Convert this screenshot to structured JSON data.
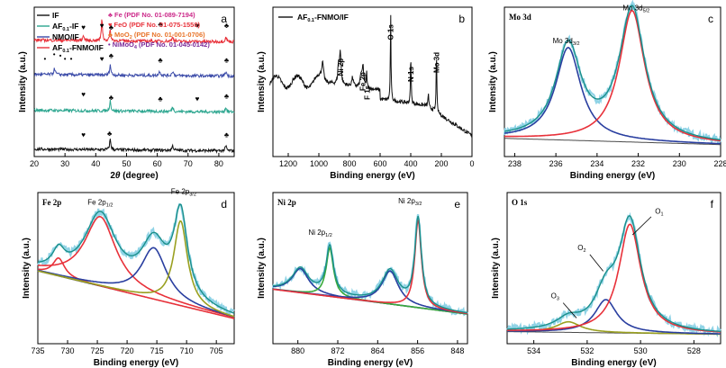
{
  "palette": {
    "raw": "#8fd3e6",
    "envelope": "#1a8f8a",
    "red": "#e8313a",
    "blue": "#2a3fa0",
    "olive": "#9aa020",
    "green": "#3aaa3a",
    "bg": "#4a4a4a",
    "magenta": "#cc2a8a",
    "purple": "#7a2a9a",
    "orange": "#e8742a",
    "teal": "#2aa58e",
    "navy": "#3a4aa8",
    "black": "#111111"
  },
  "chart_data": [
    {
      "id": "a",
      "type": "line",
      "panel_label": "a",
      "xlabel": "2θ (degree)",
      "ylabel": "Intensity (a.u.)",
      "xlim": [
        20,
        85
      ],
      "xticks": [
        20,
        30,
        40,
        50,
        60,
        70,
        80
      ],
      "series": [
        {
          "name": "IF",
          "color": "#111111",
          "offset": 0.05
        },
        {
          "name": "AF0.1-IF",
          "color": "#2aa58e",
          "offset": 0.3
        },
        {
          "name": "NMO/IF",
          "color": "#3a4aa8",
          "offset": 0.55
        },
        {
          "name": "AF0.1-FNMO/IF",
          "color": "#e8313a",
          "offset": 0.78
        }
      ],
      "reference_cards": [
        {
          "symbol": "♣",
          "phase": "Fe",
          "card": "PDF No. 01-089-7194",
          "color": "#cc2a8a"
        },
        {
          "symbol": "♥",
          "phase": "FeO",
          "card": "PDF No. 01-075-1550",
          "color": "#e8313a"
        },
        {
          "symbol": "♣",
          "phase": "MoO2",
          "card": "PDF No. 01-001-0706",
          "color": "#e8742a"
        },
        {
          "symbol": "•",
          "phase": "NiMoO4",
          "card": "PDF No. 01-045-0142",
          "color": "#7a2a9a"
        }
      ],
      "peaks": [
        36,
        42,
        45,
        61,
        73,
        82,
        65
      ],
      "niMoO4_peaks": [
        23.5,
        26.5,
        28.5,
        30,
        32
      ]
    },
    {
      "id": "b",
      "type": "line",
      "panel_label": "b",
      "xlabel": "Binding energy (eV)",
      "ylabel": "Intensity (a.u.)",
      "xlim": [
        1300,
        0
      ],
      "xticks": [
        1200,
        1000,
        800,
        600,
        400,
        200,
        0
      ],
      "series": [
        {
          "name": "AF0.1-FNMO/IF",
          "color": "#111111"
        }
      ],
      "annotations": [
        {
          "text": "Ni 2p",
          "x": 860
        },
        {
          "text": "Fe 2p",
          "x": 715
        },
        {
          "text": "F 1s",
          "x": 688
        },
        {
          "text": "O 1s",
          "x": 531
        },
        {
          "text": "N 1s",
          "x": 400
        },
        {
          "text": "Mo 3d",
          "x": 232
        }
      ]
    },
    {
      "id": "c",
      "type": "line",
      "panel_label": "c",
      "title": "Mo 3d",
      "xlabel": "Binding energy (eV)",
      "ylabel": "Intensity (a.u.)",
      "xlim": [
        238.5,
        228
      ],
      "xticks": [
        238,
        236,
        234,
        232,
        230,
        228
      ],
      "peaks": [
        {
          "name": "Mo 3d3/2",
          "center": 235.4,
          "height": 0.62,
          "width": 0.75,
          "color": "#2a3fa0"
        },
        {
          "name": "Mo 3d5/2",
          "center": 232.3,
          "height": 0.88,
          "width": 0.75,
          "color": "#e8313a"
        }
      ],
      "annotations": [
        {
          "text": "Mo 3d",
          "sub": "3/2",
          "x": 235.5
        },
        {
          "text": "Mo 3d",
          "sub": "5/2",
          "x": 232.3
        }
      ]
    },
    {
      "id": "d",
      "type": "line",
      "panel_label": "d",
      "title": "Fe 2p",
      "xlabel": "Binding energy (eV)",
      "ylabel": "Intensity (a.u.)",
      "xlim": [
        735,
        702
      ],
      "xticks": [
        735,
        730,
        725,
        720,
        715,
        710,
        705
      ],
      "peaks": [
        {
          "center": 731.5,
          "height": 0.12,
          "width": 1.2,
          "color": "#e8313a"
        },
        {
          "center": 724.5,
          "height": 0.46,
          "width": 3.2,
          "color": "#e8313a"
        },
        {
          "center": 715.5,
          "height": 0.34,
          "width": 2.6,
          "color": "#2a3fa0"
        },
        {
          "center": 711.0,
          "height": 0.56,
          "width": 1.4,
          "color": "#9aa020"
        }
      ],
      "annotations": [
        {
          "text": "Fe 2p",
          "sub": "1/2",
          "x": 724.5
        },
        {
          "text": "Fe 2p",
          "sub": "3/2",
          "x": 711.0
        }
      ]
    },
    {
      "id": "e",
      "type": "line",
      "panel_label": "e",
      "title": "Ni 2p",
      "xlabel": "Binding energy (eV)",
      "ylabel": "Intensity (a.u.)",
      "xlim": [
        885,
        846
      ],
      "xticks": [
        880,
        872,
        864,
        856,
        848
      ],
      "peaks": [
        {
          "center": 879.5,
          "height": 0.16,
          "width": 2.0,
          "color": "#2a3fa0"
        },
        {
          "center": 873.6,
          "height": 0.32,
          "width": 0.9,
          "color": "#3aaa3a"
        },
        {
          "center": 861.5,
          "height": 0.22,
          "width": 2.0,
          "color": "#2a3fa0"
        },
        {
          "center": 855.9,
          "height": 0.58,
          "width": 0.8,
          "color": "#e8313a"
        }
      ],
      "annotations": [
        {
          "text": "Ni 2p",
          "sub": "1/2",
          "x": 873.6
        },
        {
          "text": "Ni 2p",
          "sub": "3/2",
          "x": 855.9
        }
      ]
    },
    {
      "id": "f",
      "type": "line",
      "panel_label": "f",
      "title": "O 1s",
      "xlabel": "Binding energy (eV)",
      "ylabel": "Intensity (a.u.)",
      "xlim": [
        535,
        527
      ],
      "xticks": [
        534,
        532,
        530,
        528
      ],
      "peaks": [
        {
          "name": "O3",
          "center": 532.7,
          "height": 0.07,
          "width": 0.55,
          "color": "#9aa020"
        },
        {
          "name": "O2",
          "center": 531.3,
          "height": 0.22,
          "width": 0.5,
          "color": "#2a3fa0"
        },
        {
          "name": "O1",
          "center": 530.4,
          "height": 0.72,
          "width": 0.5,
          "color": "#e8313a"
        }
      ],
      "annotations": [
        {
          "text": "O",
          "sub": "3",
          "x": 533.0
        },
        {
          "text": "O",
          "sub": "2",
          "x": 531.8
        },
        {
          "text": "O",
          "sub": "1",
          "x": 529.6
        }
      ]
    }
  ]
}
